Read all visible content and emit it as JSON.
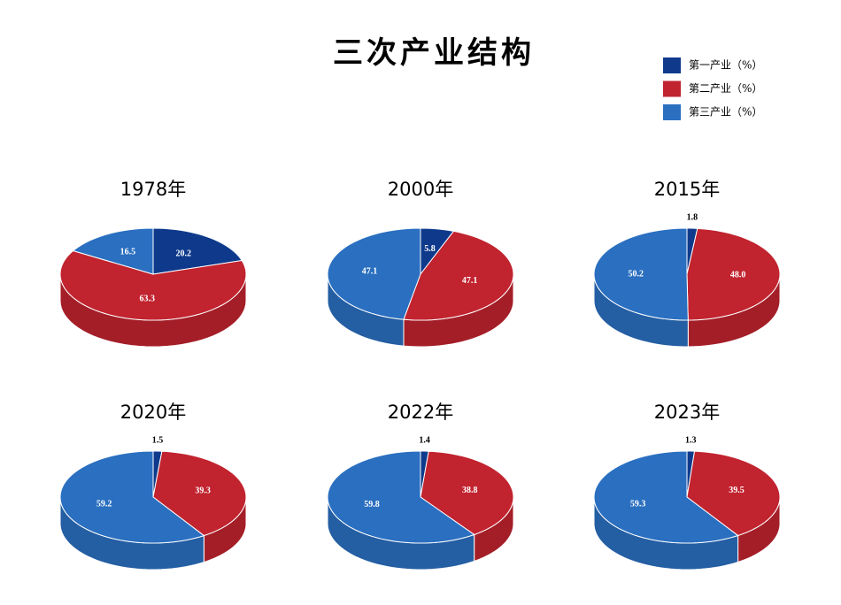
{
  "title": "三次产业结构",
  "legend": [
    {
      "name": "第一产业（%）",
      "color": "#0f3a8c"
    },
    {
      "name": "第二产业（%）",
      "color": "#c1232f"
    },
    {
      "name": "第三产业（%）",
      "color": "#2a6fc0"
    }
  ],
  "chart_data": [
    {
      "type": "pie",
      "title": "1978年",
      "values": [
        20.2,
        63.3,
        16.5
      ],
      "colors": [
        "#0f3a8c",
        "#c1232f",
        "#2a6fc0"
      ]
    },
    {
      "type": "pie",
      "title": "2000年",
      "values": [
        5.8,
        47.1,
        47.1
      ],
      "colors": [
        "#0f3a8c",
        "#c1232f",
        "#2a6fc0"
      ]
    },
    {
      "type": "pie",
      "title": "2015年",
      "values": [
        1.8,
        48,
        50.2
      ],
      "value_labels": [
        "1.8",
        "48.0",
        "50.2"
      ],
      "colors": [
        "#0f3a8c",
        "#c1232f",
        "#2a6fc0"
      ]
    },
    {
      "type": "pie",
      "title": "2020年",
      "values": [
        1.5,
        39.3,
        59.2
      ],
      "colors": [
        "#0f3a8c",
        "#c1232f",
        "#2a6fc0"
      ]
    },
    {
      "type": "pie",
      "title": "2022年",
      "values": [
        1.4,
        38.8,
        59.8
      ],
      "colors": [
        "#0f3a8c",
        "#c1232f",
        "#2a6fc0"
      ]
    },
    {
      "type": "pie",
      "title": "2023年",
      "values": [
        1.3,
        39.5,
        59.3
      ],
      "colors": [
        "#0f3a8c",
        "#c1232f",
        "#2a6fc0"
      ]
    }
  ]
}
